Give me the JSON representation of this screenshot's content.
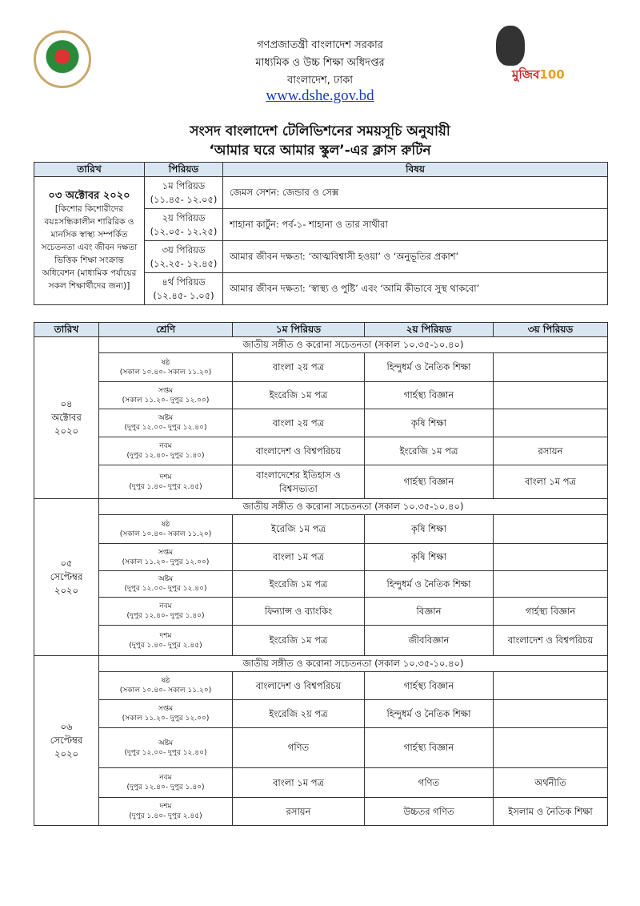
{
  "header": {
    "lines": [
      "গণপ্রজাতন্ত্রী বাংলাদেশ সরকার",
      "মাধ্যমিক ও উচ্চ শিক্ষা অধিদপ্তর",
      "বাংলাদেশ, ঢাকা"
    ],
    "website": "www.dshe.gov.bd",
    "logo_right_text": "মুজিববর্ষ 100"
  },
  "title": {
    "line1": "সংসদ বাংলাদেশ টেলিভিশনের সময়সূচি অনুযায়ী",
    "line2": "‘আমার ঘরে আমার স্কুল’-এর ক্লাস রুটিন"
  },
  "table1": {
    "headers": [
      "তারিখ",
      "পিরিয়ড",
      "বিষয়"
    ],
    "date": "০৩ অক্টোবর ২০২০",
    "date_note": "[কিশোর কিশোরীদের বয়ঃসন্ধিকালীন শারিরিক ও মানসিক স্বাস্থ্য সম্পর্কিত সচেতনতা এবং জীবন দক্ষতা ভিত্তিক শিক্ষা সংক্রান্ত অধিবেশন (মাধ্যমিক পর্যায়ের সকল শিক্ষার্থীদের জন্য)]",
    "rows": [
      {
        "period": "১ম পিরিয়ড",
        "time": "(১১.৪৫- ১২.০৫)",
        "subject": "জেমস সেশন: জেন্ডার ও সেক্স"
      },
      {
        "period": "২য় পিরিয়ড",
        "time": "(১২.০৫- ১২.২৫)",
        "subject": "শাহানা কার্টুন: পর্ব-১- শাহানা ও তার সাথীরা"
      },
      {
        "period": "৩য় পিরিয়ড",
        "time": "(১২.২৫- ১২.৪৫)",
        "subject": "আমার জীবন দক্ষতা: ‘আত্মবিশ্বাসী হওয়া’ ও ‘অনুভূতির প্রকাশ’"
      },
      {
        "period": "৪র্থ পিরিয়ড",
        "time": "(১২.৪৫- ১.০৫)",
        "subject": "আমার জীবন দক্ষতা: ‘স্বাস্থ্য ও পুষ্টি’ এবং ‘আমি কীভাবে সুস্থ থাকবো’"
      }
    ]
  },
  "table2": {
    "headers": [
      "তারিখ",
      "শ্রেণি",
      "১ম পিরিয়ড",
      "২য় পিরিয়ড",
      "৩য় পিরিয়ড"
    ],
    "days": [
      {
        "date": "০৪ অক্টোবর ২০২০",
        "anthem": "জাতীয় সঙ্গীত ও করোনা সচেতনতা (সকাল ১০.৩৫-১০.৪০)",
        "rows": [
          {
            "class": "ষষ্ঠ",
            "time": "(সকাল ১০.৪০- সকাল ১১.২০)",
            "p1": "বাংলা ২য় পত্র",
            "p2": "হিন্দুধর্ম ও নৈতিক শিক্ষা",
            "p3": ""
          },
          {
            "class": "সপ্তম",
            "time": "(সকাল ১১.২০- দুপুর ১২.০০)",
            "p1": "ইংরেজি ১ম পত্র",
            "p2": "গার্হস্থ্য বিজ্ঞান",
            "p3": ""
          },
          {
            "class": "অষ্টম",
            "time": "(দুপুর ১২.০০- দুপুর ১২.৪০)",
            "p1": "বাংলা ২য় পত্র",
            "p2": "কৃষি শিক্ষা",
            "p3": ""
          },
          {
            "class": "নবম",
            "time": "(দুপুর ১২.৪০- দুপুর ১.৪০)",
            "p1": "বাংলাদেশ ও বিশ্বপরিচয়",
            "p2": "ইংরেজি ১ম পত্র",
            "p3": "রসায়ন"
          },
          {
            "class": "দশম",
            "time": "(দুপুর ১.৪০- দুপুর ২.৪৫)",
            "p1": "বাংলাদেশের ইতিহাস ও বিশ্বসভ্যতা",
            "p2": "গার্হস্থ্য বিজ্ঞান",
            "p3": "বাংলা ১ম পত্র"
          }
        ]
      },
      {
        "date": "০৫ সেপ্টেম্বর ২০২০",
        "anthem": "জাতীয় সঙ্গীত ও করোনা সচেতনতা (সকাল ১০.৩৫-১০.৪০)",
        "rows": [
          {
            "class": "ষষ্ঠ",
            "time": "(সকাল ১০.৪০- সকাল ১১.২০)",
            "p1": "ইরেজি ১ম পত্র",
            "p2": "কৃষি শিক্ষা",
            "p3": ""
          },
          {
            "class": "সপ্তম",
            "time": "(সকাল ১১.২০- দুপুর ১২.০০)",
            "p1": "বাংলা ১ম পত্র",
            "p2": "কৃষি শিক্ষা",
            "p3": ""
          },
          {
            "class": "অষ্টম",
            "time": "(দুপুর ১২.০০- দুপুর ১২.৪০)",
            "p1": "ইংরেজি ১ম পত্র",
            "p2": "হিন্দুধর্ম ও নৈতিক শিক্ষা",
            "p3": ""
          },
          {
            "class": "নবম",
            "time": "(দুপুর ১২.৪০- দুপুর ১.৪০)",
            "p1": "ফিন্যান্স ও ব্যাংকিং",
            "p2": "বিজ্ঞান",
            "p3": "গার্হস্থ্য বিজ্ঞান"
          },
          {
            "class": "দশম",
            "time": "(দুপুর ১.৪০- দুপুর ২.৪৫)",
            "p1": "ইংরেজি ১ম পত্র",
            "p2": "জীববিজ্ঞান",
            "p3": "বাংলাদেশ ও বিশ্বপরিচয়"
          }
        ]
      },
      {
        "date": "০৬ সেপ্টেম্বর ২০২০",
        "anthem": "জাতীয় সঙ্গীত ও করোনা সচেতনতা (সকাল ১০.৩৫-১০.৪০)",
        "rows": [
          {
            "class": "ষষ্ঠ",
            "time": "(সকাল ১০.৪০- সকাল ১১.২০)",
            "p1": "বাংলাদেশ ও বিশ্বপরিচয়",
            "p2": "গার্হস্থ্য বিজ্ঞান",
            "p3": ""
          },
          {
            "class": "সপ্তম",
            "time": "(সকাল ১১.২০- দুপুর ১২.০০)",
            "p1": "ইংরেজি ২য় পত্র",
            "p2": "হিন্দুধর্ম ও নৈতিক শিক্ষা",
            "p3": ""
          },
          {
            "class": "অষ্টম",
            "time": "(দুপুর ১২.০০- দুপুর ১২.৪০)",
            "p1": "গণিত",
            "p2": "গার্হস্থ্য বিজ্ঞান",
            "p3": ""
          },
          {
            "class": "নবম",
            "time": "(দুপুর ১২.৪০- দুপুর ১.৪০)",
            "p1": "বাংলা ১ম পত্র",
            "p2": "গণিত",
            "p3": "অর্থনীতি"
          },
          {
            "class": "দশম",
            "time": "(দুপুর ১.৪০- দুপুর ২.৪৫)",
            "p1": "রসায়ন",
            "p2": "উচ্চতর গণিত",
            "p3": "ইসলাম ও নৈতিক শিক্ষা"
          }
        ]
      }
    ]
  }
}
